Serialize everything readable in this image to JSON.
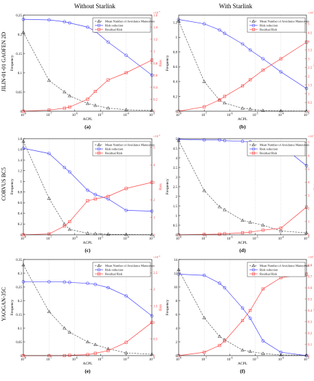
{
  "columns": [
    "Without Starlink",
    "With Starlink"
  ],
  "rows": [
    "JILIN-01-01 GAOFEN 2D",
    "CORVUS BC5",
    "YAOGAN-35C"
  ],
  "colors": {
    "mnam": "#555555",
    "rr": "#4040ff",
    "res": "#ff4040",
    "grid": "#bbbbbb"
  },
  "chart_data": [
    {
      "type": "line",
      "label": "(a)",
      "x": [
        "10^-8",
        "10^-7",
        "10^-6",
        "10^-5",
        "10^-4",
        "10^-3"
      ],
      "xlabel": "ACPL",
      "ylabel": "Frequency",
      "ylabel_right": "Risk",
      "ylim": [
        0,
        0.25
      ],
      "yticks": [
        "0",
        "0.05",
        "0.1",
        "0.15",
        "0.2",
        "0.25"
      ],
      "y2lim": [
        0,
        1.6
      ],
      "y2ticks": [
        "0",
        "0.2",
        "0.4",
        "0.6",
        "0.8",
        "1",
        "1.2",
        "1.4",
        "1.6"
      ],
      "y2exp": "10^-3",
      "legend": [
        "Mean Number of Avoidance Maneuvers",
        "Risk reduction",
        "Residual Risk"
      ],
      "series": [
        {
          "name": "Mean Number of Avoidance Maneuvers",
          "axis": "left",
          "points": [
            [
              -8,
              0.205
            ],
            [
              -7,
              0.08
            ],
            [
              -6.4,
              0.05
            ],
            [
              -6.2,
              0.04
            ],
            [
              -5.5,
              0.02
            ],
            [
              -5.2,
              0.015
            ],
            [
              -4.7,
              0.008
            ],
            [
              -4,
              0.004
            ],
            [
              -3,
              0.002
            ]
          ]
        },
        {
          "name": "Risk reduction",
          "axis": "right",
          "points": [
            [
              -8,
              1.53
            ],
            [
              -7,
              1.52
            ],
            [
              -6.4,
              1.49
            ],
            [
              -6.2,
              1.47
            ],
            [
              -5.5,
              1.4
            ],
            [
              -5.2,
              1.33
            ],
            [
              -4.7,
              1.15
            ],
            [
              -4,
              0.93
            ],
            [
              -3,
              0.6
            ]
          ]
        },
        {
          "name": "Residual Risk",
          "axis": "right",
          "points": [
            [
              -8,
              0
            ],
            [
              -7,
              0.02
            ],
            [
              -6.4,
              0.05
            ],
            [
              -6.2,
              0.07
            ],
            [
              -5.5,
              0.2
            ],
            [
              -5.2,
              0.33
            ],
            [
              -4.7,
              0.52
            ],
            [
              -4,
              0.64
            ],
            [
              -3,
              0.85
            ]
          ]
        }
      ]
    },
    {
      "type": "line",
      "label": "(b)",
      "x": [
        "10^-8",
        "10^-7",
        "10^-6",
        "10^-5",
        "10^-4",
        "10^-3"
      ],
      "xlabel": "ACPL",
      "ylabel": "Frequency",
      "ylabel_right": "Risk",
      "ylim": [
        0,
        1.3
      ],
      "yticks": [
        "0",
        "0.2",
        "0.4",
        "0.6",
        "0.8",
        "1",
        "1.2"
      ],
      "y2lim": [
        0,
        5.5
      ],
      "y2ticks": [
        "0",
        "0.5",
        "1",
        "1.5",
        "2",
        "2.5",
        "3",
        "3.5",
        "4",
        "4.5",
        "5"
      ],
      "y2exp": "10^-3",
      "legend": [
        "Mean Number of Avoidance Maneuvers",
        "Risk reduction",
        "Residual Risk"
      ],
      "series": [
        {
          "name": "Mean Number of Avoidance Maneuvers",
          "axis": "left",
          "points": [
            [
              -8,
              1.22
            ],
            [
              -7,
              0.4
            ],
            [
              -6.4,
              0.15
            ],
            [
              -6.2,
              0.11
            ],
            [
              -5.5,
              0.04
            ],
            [
              -5.2,
              0.03
            ],
            [
              -4.7,
              0.01
            ],
            [
              -4,
              0.005
            ],
            [
              -3,
              0.002
            ]
          ]
        },
        {
          "name": "Risk reduction",
          "axis": "right",
          "points": [
            [
              -8,
              5.25
            ],
            [
              -7,
              5.0
            ],
            [
              -6.4,
              4.65
            ],
            [
              -6.2,
              4.45
            ],
            [
              -5.5,
              3.85
            ],
            [
              -5.2,
              3.5
            ],
            [
              -4.7,
              3.0
            ],
            [
              -4,
              2.25
            ],
            [
              -3,
              1.3
            ]
          ]
        },
        {
          "name": "Residual Risk",
          "axis": "right",
          "points": [
            [
              -8,
              0
            ],
            [
              -7,
              0.25
            ],
            [
              -6.4,
              0.65
            ],
            [
              -6.2,
              0.85
            ],
            [
              -5.5,
              1.45
            ],
            [
              -5.2,
              1.8
            ],
            [
              -4.7,
              2.35
            ],
            [
              -4,
              3.0
            ],
            [
              -3,
              3.95
            ]
          ]
        }
      ]
    },
    {
      "type": "line",
      "label": "(c)",
      "x": [
        "10^-8",
        "10^-7",
        "10^-6",
        "10^-5",
        "10^-4",
        "10^-3"
      ],
      "xlabel": "ACPL",
      "ylabel": "Frequency",
      "ylabel_right": "Risk",
      "ylim": [
        0,
        1.8
      ],
      "yticks": [
        "0",
        "0.2",
        "0.4",
        "0.6",
        "0.8",
        "1",
        "1.2",
        "1.4",
        "1.6",
        "1.8"
      ],
      "y2lim": [
        0,
        5.5
      ],
      "y2ticks": [
        "0",
        "1",
        "2",
        "3",
        "4",
        "5"
      ],
      "y2exp": "10^-3",
      "legend": [
        "Mean Number of Avoidance Maneuvers",
        "Risk reduction",
        "Residual Risk"
      ],
      "series": [
        {
          "name": "Mean Number of Avoidance Maneuvers",
          "axis": "left",
          "points": [
            [
              -8,
              1.75
            ],
            [
              -7,
              0.68
            ],
            [
              -6.4,
              0.2
            ],
            [
              -6.2,
              0.1
            ],
            [
              -5.5,
              0.03
            ],
            [
              -5.2,
              0.02
            ],
            [
              -4.7,
              0.01
            ],
            [
              -4,
              0.005
            ],
            [
              -3,
              0.002
            ]
          ]
        },
        {
          "name": "Risk reduction",
          "axis": "right",
          "points": [
            [
              -8,
              4.95
            ],
            [
              -7,
              4.65
            ],
            [
              -6.4,
              3.85
            ],
            [
              -6.2,
              3.6
            ],
            [
              -5.5,
              2.55
            ],
            [
              -5.2,
              2.3
            ],
            [
              -4.7,
              2.05
            ],
            [
              -4,
              1.4
            ],
            [
              -3,
              1.35
            ]
          ]
        },
        {
          "name": "Residual Risk",
          "axis": "right",
          "points": [
            [
              -8,
              0
            ],
            [
              -7,
              0.05
            ],
            [
              -6.4,
              0.5
            ],
            [
              -6.2,
              0.75
            ],
            [
              -5.5,
              1.95
            ],
            [
              -5.2,
              2.05
            ],
            [
              -4.7,
              2.2
            ],
            [
              -4,
              2.65
            ],
            [
              -3,
              3.0
            ]
          ]
        }
      ]
    },
    {
      "type": "line",
      "label": "(d)",
      "x": [
        "10^-8",
        "10^-7",
        "10^-6",
        "10^-5",
        "10^-4",
        "10^-3"
      ],
      "xlabel": "ACPL",
      "ylabel": "Frequency",
      "ylabel_right": "Risk",
      "ylim": [
        0,
        5
      ],
      "yticks": [
        "0",
        "0.5",
        "1",
        "1.5",
        "2",
        "2.5",
        "3",
        "3.5",
        "4",
        "4.5",
        "5"
      ],
      "y2lim": [
        0,
        7.3
      ],
      "y2ticks": [
        "0",
        "1",
        "2",
        "3",
        "4",
        "5",
        "6",
        "7"
      ],
      "y2exp": "10^-4",
      "legend": [
        "Mean Number of Avoidance Maneuvers",
        "Risk reduction",
        "Residual Risk"
      ],
      "series": [
        {
          "name": "Mean Number of Avoidance Maneuvers",
          "axis": "left",
          "points": [
            [
              -8,
              4.9
            ],
            [
              -7,
              2.3
            ],
            [
              -6.4,
              1.45
            ],
            [
              -6.2,
              1.3
            ],
            [
              -5.5,
              0.75
            ],
            [
              -5.2,
              0.65
            ],
            [
              -4.7,
              0.5
            ],
            [
              -4,
              0.2
            ],
            [
              -3,
              0.1
            ]
          ]
        },
        {
          "name": "Risk reduction",
          "axis": "right",
          "points": [
            [
              -8,
              7.25
            ],
            [
              -7,
              7.2
            ],
            [
              -6.4,
              7.2
            ],
            [
              -6.2,
              7.15
            ],
            [
              -5.5,
              7.1
            ],
            [
              -5.2,
              7.05
            ],
            [
              -4.7,
              6.95
            ],
            [
              -4,
              6.8
            ],
            [
              -3,
              5.25
            ]
          ]
        },
        {
          "name": "Residual Risk",
          "axis": "right",
          "points": [
            [
              -8,
              0
            ],
            [
              -7,
              0.03
            ],
            [
              -6.4,
              0.05
            ],
            [
              -6.2,
              0.08
            ],
            [
              -5.5,
              0.15
            ],
            [
              -5.2,
              0.2
            ],
            [
              -4.7,
              0.35
            ],
            [
              -4,
              0.5
            ],
            [
              -3,
              2.1
            ]
          ]
        }
      ]
    },
    {
      "type": "line",
      "label": "(e)",
      "x": [
        "10^-8",
        "10^-7",
        "10^-6",
        "10^-5",
        "10^-4",
        "10^-3"
      ],
      "xlabel": "ACPL",
      "ylabel": "Frequency",
      "ylabel_right": "Risk",
      "ylim": [
        0,
        0.35
      ],
      "yticks": [
        "0",
        "0.05",
        "0.1",
        "0.15",
        "0.2",
        "0.25",
        "0.3",
        "0.35"
      ],
      "y2lim": [
        0,
        2.9
      ],
      "y2ticks": [
        "0",
        "0.5",
        "1",
        "1.5",
        "2",
        "2.5"
      ],
      "y2exp": "10^-4",
      "legend": [
        "Mean Number of Avoidance Maneuvers",
        "Risk reduction",
        "Residual Risk"
      ],
      "series": [
        {
          "name": "Mean Number of Avoidance Maneuvers",
          "axis": "left",
          "points": [
            [
              -8,
              0.33
            ],
            [
              -7,
              0.16
            ],
            [
              -6.4,
              0.1
            ],
            [
              -6.2,
              0.085
            ],
            [
              -5.5,
              0.05
            ],
            [
              -5.2,
              0.04
            ],
            [
              -4.7,
              0.025
            ],
            [
              -4,
              0.01
            ],
            [
              -3,
              0.005
            ]
          ]
        },
        {
          "name": "Risk reduction",
          "axis": "right",
          "points": [
            [
              -8,
              2.23
            ],
            [
              -7,
              2.23
            ],
            [
              -6.4,
              2.22
            ],
            [
              -6.2,
              2.21
            ],
            [
              -5.5,
              2.18
            ],
            [
              -5.2,
              2.15
            ],
            [
              -4.7,
              2.05
            ],
            [
              -4,
              1.8
            ],
            [
              -3,
              1.2
            ]
          ]
        },
        {
          "name": "Residual Risk",
          "axis": "right",
          "points": [
            [
              -8,
              0
            ],
            [
              -7,
              0
            ],
            [
              -6.4,
              0
            ],
            [
              -6.2,
              0.01
            ],
            [
              -5.5,
              0.03
            ],
            [
              -5.2,
              0.07
            ],
            [
              -4.7,
              0.15
            ],
            [
              -4,
              0.4
            ],
            [
              -3,
              1.0
            ]
          ]
        }
      ]
    },
    {
      "type": "line",
      "label": "(f)",
      "x": [
        "10^-8",
        "10^-7",
        "10^-6",
        "10^-5",
        "10^-4",
        "10^-3"
      ],
      "xlabel": "ACPL",
      "ylabel": "Frequency",
      "ylabel_right": "Risk",
      "ylim": [
        0,
        14
      ],
      "yticks": [
        "0",
        "2",
        "4",
        "6",
        "8",
        "10",
        "12",
        "14"
      ],
      "y2lim": [
        0,
        0.85
      ],
      "y2ticks": [
        "0",
        "0.1",
        "0.2",
        "0.3",
        "0.4",
        "0.5",
        "0.6",
        "0.7",
        "0.8"
      ],
      "y2exp": "10^-7",
      "legend": [
        "Mean Number of Avoidance Maneuvers",
        "Risk reduction",
        "Residual Risk"
      ],
      "series": [
        {
          "name": "Mean Number of Avoidance Maneuvers",
          "axis": "left",
          "points": [
            [
              -8,
              12.5
            ],
            [
              -7,
              5.5
            ],
            [
              -6.4,
              2.8
            ],
            [
              -6.2,
              2.3
            ],
            [
              -5.5,
              0.8
            ],
            [
              -5.2,
              0.6
            ],
            [
              -4.7,
              0.3
            ],
            [
              -4,
              0.1
            ],
            [
              -3,
              0.05
            ]
          ]
        },
        {
          "name": "Risk reduction",
          "axis": "right",
          "points": [
            [
              -8,
              0.72
            ],
            [
              -7,
              0.71
            ],
            [
              -6.4,
              0.64
            ],
            [
              -6.2,
              0.6
            ],
            [
              -5.5,
              0.42
            ],
            [
              -5.2,
              0.33
            ],
            [
              -4.7,
              0.13
            ],
            [
              -4,
              0.03
            ],
            [
              -3,
              0.0
            ]
          ]
        },
        {
          "name": "Residual Risk",
          "axis": "right",
          "points": [
            [
              -8,
              0
            ],
            [
              -7,
              0.03
            ],
            [
              -6.4,
              0.09
            ],
            [
              -6.2,
              0.13
            ],
            [
              -5.5,
              0.31
            ],
            [
              -5.2,
              0.4
            ],
            [
              -4.7,
              0.59
            ],
            [
              -4,
              0.69
            ],
            [
              -3,
              0.72
            ]
          ]
        }
      ]
    }
  ]
}
